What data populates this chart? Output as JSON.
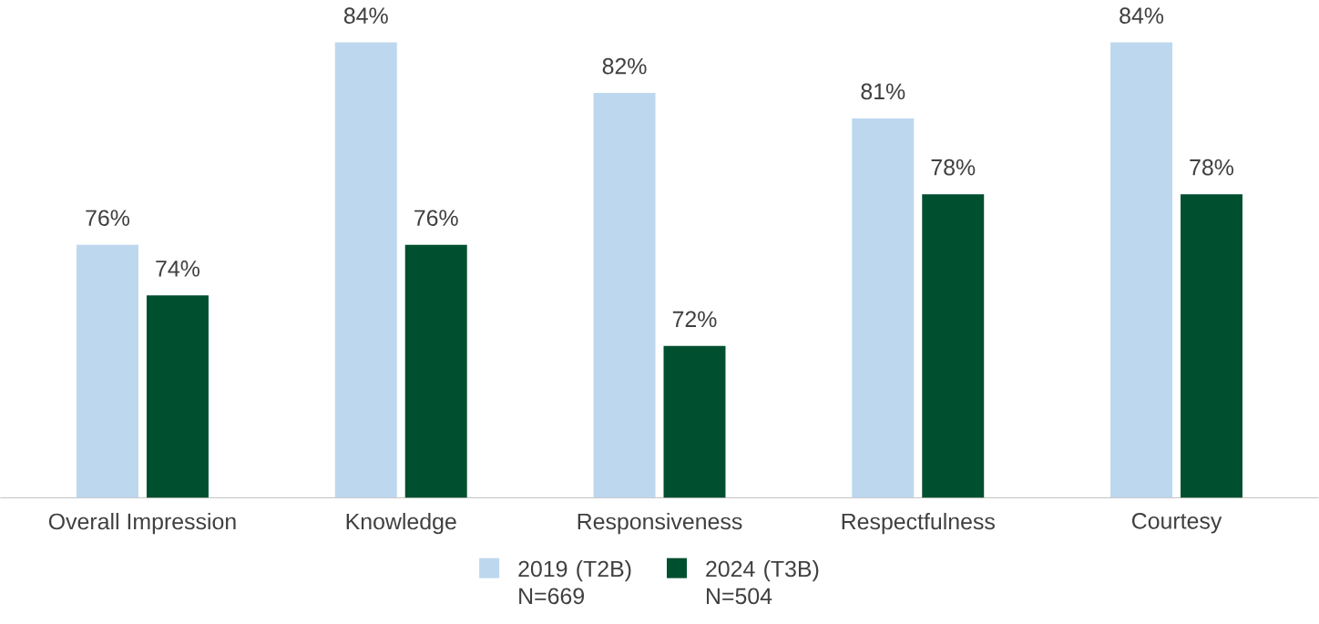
{
  "chart_data": {
    "type": "bar",
    "categories": [
      "Overall Impression",
      "Knowledge",
      "Responsiveness",
      "Respectfulness",
      "Courtesy"
    ],
    "series": [
      {
        "name": "2019 (T2B) N=669",
        "color": "#bdd7ee",
        "values": [
          76,
          84,
          82,
          81,
          84
        ],
        "value_labels": [
          "76%",
          "84%",
          "82%",
          "81%",
          "84%"
        ]
      },
      {
        "name": "2024 (T3B) N=504",
        "color": "#00502f",
        "values": [
          74,
          76,
          72,
          78,
          78
        ],
        "value_labels": [
          "74%",
          "76%",
          "72%",
          "78%",
          "78%"
        ]
      }
    ],
    "ylim": [
      66,
      84
    ],
    "legend": "bottom"
  }
}
